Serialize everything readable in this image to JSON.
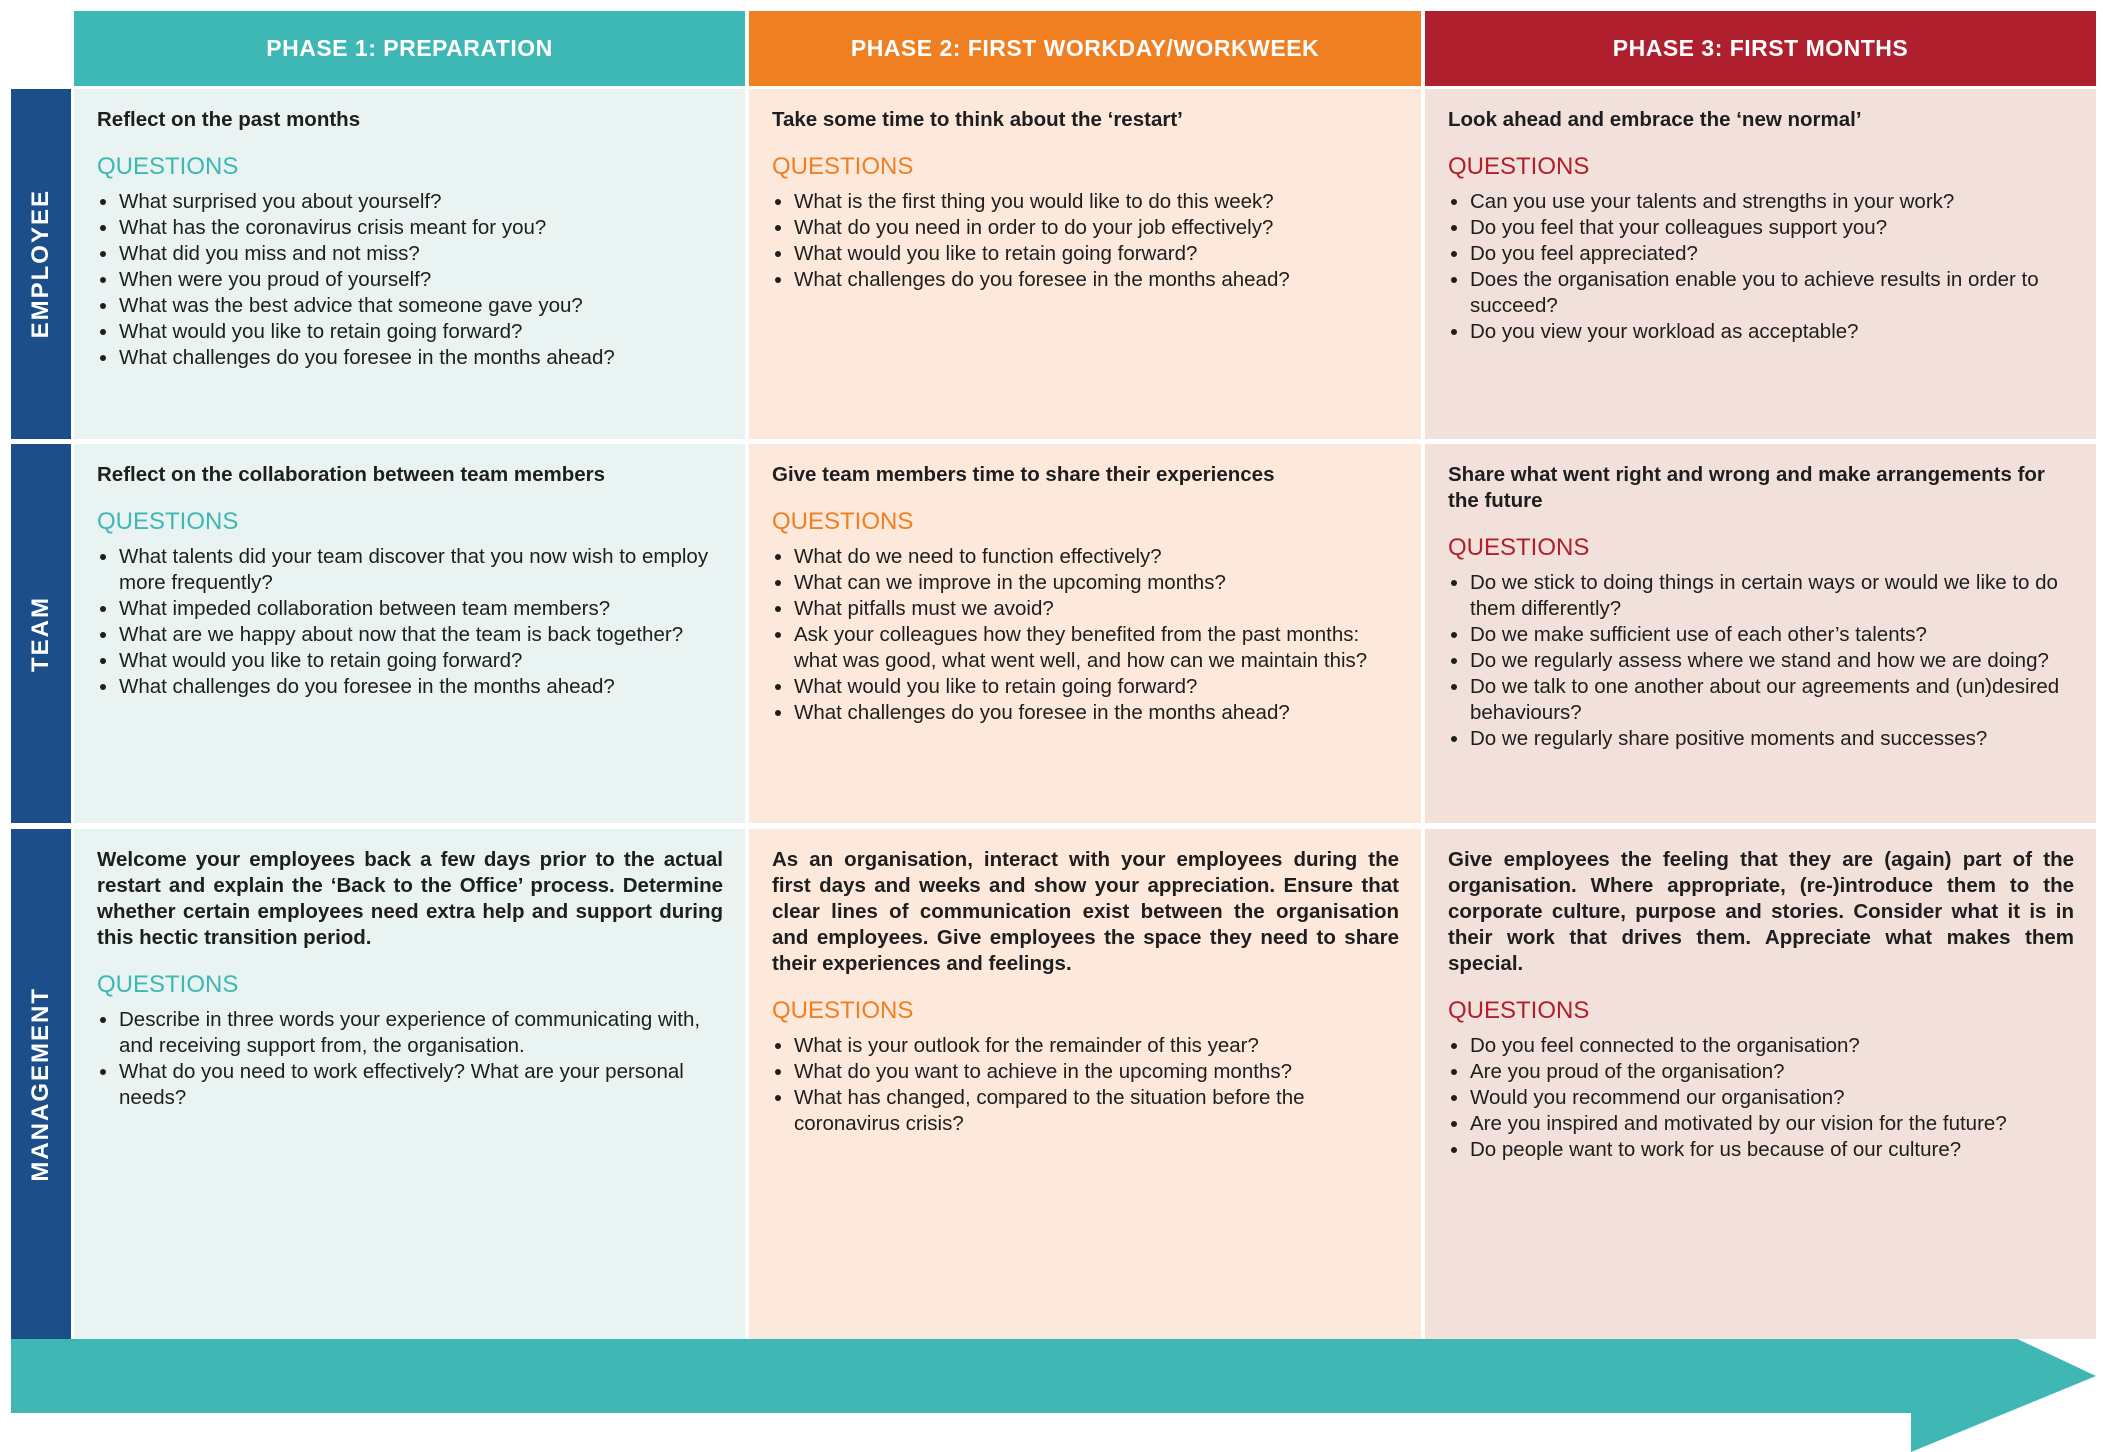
{
  "phases": [
    "PHASE 1: PREPARATION",
    "PHASE 2: FIRST WORKDAY/WORKWEEK",
    "PHASE 3: FIRST MONTHS"
  ],
  "rows": [
    {
      "label": "EMPLOYEE",
      "cells": [
        {
          "heading": "Reflect on the past months",
          "questions_label": "QUESTIONS",
          "questions": [
            "What surprised you about yourself?",
            "What has the coronavirus crisis meant for you?",
            "What did you miss and not miss?",
            "When were you proud of yourself?",
            "What was the best advice that someone gave you?",
            "What would you like to retain going forward?",
            "What challenges do you foresee in the months ahead?"
          ]
        },
        {
          "heading": "Take some time to think about the ‘restart’",
          "questions_label": "QUESTIONS",
          "questions": [
            "What is the first thing you would like to do this week?",
            "What do you need in order to do your job effectively?",
            "What would you like to retain going forward?",
            "What challenges do you foresee in the months ahead?"
          ]
        },
        {
          "heading": "Look ahead and embrace the ‘new normal’",
          "questions_label": "QUESTIONS",
          "questions": [
            "Can you use your talents and strengths in your work?",
            "Do you feel that your colleagues support you?",
            "Do you feel appreciated?",
            "Does the organisation enable you to achieve results in order to succeed?",
            "Do you view your workload as acceptable?"
          ]
        }
      ]
    },
    {
      "label": "TEAM",
      "cells": [
        {
          "heading": "Reflect on the collaboration between team members",
          "questions_label": "QUESTIONS",
          "questions": [
            "What talents did your team discover that you now wish to employ more frequently?",
            "What impeded collaboration between team members?",
            "What are we happy about now that the team is back together?",
            "What would you like to retain going forward?",
            "What challenges do you foresee in the months ahead?"
          ]
        },
        {
          "heading": "Give team members time to share their experiences",
          "questions_label": "QUESTIONS",
          "questions": [
            "What do we need to function effectively?",
            "What can we improve in the upcoming months?",
            "What pitfalls must we avoid?",
            "Ask your colleagues how they benefited from the past months: what was good, what went well, and how can we maintain this?",
            "What would you like to retain going forward?",
            "What challenges do you foresee in the months ahead?"
          ]
        },
        {
          "heading": "Share what went right and wrong and make arrangements for the future",
          "questions_label": "QUESTIONS",
          "questions": [
            "Do we stick to doing things in certain ways or would we like to do them differently?",
            "Do we make sufficient use of each other’s talents?",
            "Do we regularly assess where we stand and how we are doing?",
            "Do we talk to one another about our agreements and (un)desired behaviours?",
            "Do we regularly share positive moments and successes?"
          ]
        }
      ]
    },
    {
      "label": "MANAGEMENT",
      "cells": [
        {
          "heading": "Welcome your employees back a few days prior to the actual restart and explain the ‘Back to the Office’ process. Determine whether certain employees need extra help and support during this hectic transition period.",
          "questions_label": "QUESTIONS",
          "questions": [
            "Describe in three words your experience of communicating with, and receiving support from, the organisation.",
            "What do you need to work effectively? What are your personal needs?"
          ]
        },
        {
          "heading": "As an organisation, interact with your employees during the first days and weeks and show your appreciation. Ensure that clear lines of communication exist between the organisation and employees. Give employees the space they need to share their experiences and feelings.",
          "questions_label": "QUESTIONS",
          "questions": [
            "What is your outlook for the remainder of this year?",
            "What do you want to achieve in the upcoming months?",
            "What has changed, compared to the situation before the coronavirus crisis?"
          ]
        },
        {
          "heading": "Give employees the feeling that they are (again) part of the organisation. Where appropriate, (re-)introduce them to the corporate culture, purpose and stories. Consider what it is in their work that drives them. Appreciate what makes them special.",
          "questions_label": "QUESTIONS",
          "questions": [
            "Do you feel connected to the organisation?",
            "Are you proud of the organisation?",
            "Would you recommend our organisation?",
            "Are you inspired and motivated by our vision for the future?",
            "Do people want to work for us because of our culture?"
          ]
        }
      ]
    }
  ]
}
